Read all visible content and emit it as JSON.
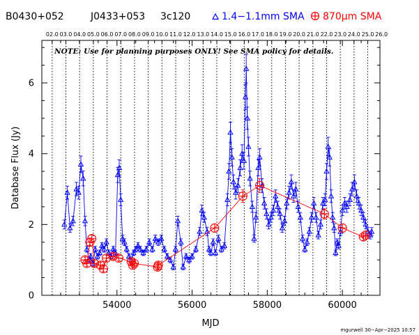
{
  "header": {
    "names": [
      "B0430+052",
      "J0433+053",
      "3c120"
    ],
    "legend_1mm": "1.4−1.1mm SMA",
    "legend_870_prefix": "870",
    "legend_870_unit": "μm SMA"
  },
  "note": "NOTE: Use for planning purposes ONLY! See SMA policy for details.",
  "credit": "mgurwell 30−Apr−2025 10:57",
  "colors": {
    "band_1mm": "#0000ff",
    "band_870": "#ff0000",
    "axes": "#000000"
  },
  "chart_data": {
    "type": "scatter",
    "xlabel": "MJD",
    "ylabel": "Database Flux (Jy)",
    "xlim": [
      52000,
      61000
    ],
    "ylim": [
      0,
      7.2
    ],
    "xticks": [
      54000,
      56000,
      58000,
      60000
    ],
    "xtick_labels": [
      "54000",
      "56000",
      "58000",
      "60000"
    ],
    "yticks": [
      0,
      2,
      4,
      6
    ],
    "ytick_labels": [
      "0",
      "2",
      "4",
      "6"
    ],
    "year_ticks": {
      "labels": [
        "02.0",
        "03.0",
        "04.0",
        "05.0",
        "06.0",
        "07.0",
        "08.0",
        "09.0",
        "10.0",
        "11.0",
        "12.0",
        "13.0",
        "14.0",
        "15.0",
        "16.0",
        "17.0",
        "18.0",
        "19.0",
        "20.0",
        "21.0",
        "22.0",
        "23.0",
        "24.0",
        "25.0",
        "26.0"
      ],
      "mjd": [
        52275,
        52640,
        53005,
        53371,
        53736,
        54101,
        54466,
        54832,
        55197,
        55562,
        55927,
        56293,
        56658,
        57023,
        57388,
        57754,
        58119,
        58484,
        58849,
        59215,
        59580,
        59945,
        60310,
        60676,
        61041
      ]
    },
    "grid": "dotted vertical lines at year boundaries",
    "series": [
      {
        "name": "1.4−1.1mm SMA",
        "color": "#0000ff",
        "marker": "triangle",
        "points": [
          [
            52600,
            2.0
          ],
          [
            52680,
            2.9
          ],
          [
            52750,
            1.9
          ],
          [
            52830,
            2.1
          ],
          [
            52920,
            3.0
          ],
          [
            52980,
            2.9
          ],
          [
            53040,
            3.7
          ],
          [
            53100,
            3.3
          ],
          [
            53150,
            2.1
          ],
          [
            53200,
            1.3
          ],
          [
            53260,
            1.0
          ],
          [
            53300,
            1.1
          ],
          [
            53360,
            0.9
          ],
          [
            53420,
            1.3
          ],
          [
            53480,
            1.1
          ],
          [
            53540,
            1.2
          ],
          [
            53600,
            1.4
          ],
          [
            53660,
            1.3
          ],
          [
            53720,
            1.5
          ],
          [
            53780,
            1.2
          ],
          [
            53840,
            1.1
          ],
          [
            53900,
            1.3
          ],
          [
            53960,
            1.2
          ],
          [
            54020,
            3.4
          ],
          [
            54060,
            3.6
          ],
          [
            54100,
            2.7
          ],
          [
            54150,
            1.6
          ],
          [
            54200,
            1.5
          ],
          [
            54260,
            1.3
          ],
          [
            54320,
            1.1
          ],
          [
            54380,
            1.0
          ],
          [
            54440,
            1.2
          ],
          [
            54500,
            1.3
          ],
          [
            54560,
            1.4
          ],
          [
            54620,
            1.3
          ],
          [
            54700,
            1.2
          ],
          [
            54780,
            1.3
          ],
          [
            54860,
            1.5
          ],
          [
            54940,
            1.3
          ],
          [
            55020,
            1.6
          ],
          [
            55100,
            1.5
          ],
          [
            55180,
            1.6
          ],
          [
            55260,
            1.3
          ],
          [
            55340,
            1.1
          ],
          [
            55420,
            1.0
          ],
          [
            55500,
            0.8
          ],
          [
            55560,
            1.3
          ],
          [
            55620,
            2.1
          ],
          [
            55700,
            1.5
          ],
          [
            55760,
            0.8
          ],
          [
            55840,
            1.1
          ],
          [
            55920,
            1.0
          ],
          [
            56000,
            1.1
          ],
          [
            56100,
            1.3
          ],
          [
            56200,
            1.8
          ],
          [
            56260,
            2.4
          ],
          [
            56320,
            2.2
          ],
          [
            56400,
            1.8
          ],
          [
            56450,
            1.3
          ],
          [
            56500,
            1.2
          ],
          [
            56560,
            1.5
          ],
          [
            56620,
            1.2
          ],
          [
            56700,
            1.6
          ],
          [
            56780,
            1.3
          ],
          [
            56860,
            1.4
          ],
          [
            56940,
            2.7
          ],
          [
            56980,
            3.5
          ],
          [
            57020,
            4.6
          ],
          [
            57060,
            3.9
          ],
          [
            57100,
            3.2
          ],
          [
            57160,
            2.9
          ],
          [
            57220,
            3.1
          ],
          [
            57280,
            3.6
          ],
          [
            57330,
            4.0
          ],
          [
            57380,
            3.8
          ],
          [
            57420,
            5.6
          ],
          [
            57440,
            6.4
          ],
          [
            57470,
            5.0
          ],
          [
            57500,
            4.2
          ],
          [
            57540,
            3.3
          ],
          [
            57600,
            2.5
          ],
          [
            57650,
            1.6
          ],
          [
            57700,
            2.2
          ],
          [
            57760,
            3.6
          ],
          [
            57800,
            3.9
          ],
          [
            57860,
            3.1
          ],
          [
            57920,
            2.6
          ],
          [
            57980,
            2.3
          ],
          [
            58040,
            2.0
          ],
          [
            58100,
            2.2
          ],
          [
            58160,
            2.4
          ],
          [
            58220,
            2.8
          ],
          [
            58280,
            2.5
          ],
          [
            58340,
            2.3
          ],
          [
            58400,
            1.9
          ],
          [
            58460,
            2.1
          ],
          [
            58520,
            2.6
          ],
          [
            58580,
            2.9
          ],
          [
            58640,
            3.2
          ],
          [
            58700,
            2.8
          ],
          [
            58760,
            3.0
          ],
          [
            58820,
            2.5
          ],
          [
            58880,
            2.2
          ],
          [
            58940,
            1.6
          ],
          [
            59000,
            1.3
          ],
          [
            59060,
            1.5
          ],
          [
            59120,
            1.8
          ],
          [
            59180,
            2.2
          ],
          [
            59240,
            2.6
          ],
          [
            59300,
            2.2
          ],
          [
            59360,
            1.7
          ],
          [
            59420,
            2.0
          ],
          [
            59480,
            2.6
          ],
          [
            59540,
            2.7
          ],
          [
            59580,
            3.5
          ],
          [
            59620,
            4.2
          ],
          [
            59660,
            3.9
          ],
          [
            59700,
            2.8
          ],
          [
            59740,
            2.2
          ],
          [
            59780,
            1.9
          ],
          [
            59820,
            1.2
          ],
          [
            59860,
            1.5
          ],
          [
            59900,
            1.4
          ],
          [
            59950,
            1.8
          ],
          [
            60000,
            2.4
          ],
          [
            60060,
            2.6
          ],
          [
            60120,
            2.5
          ],
          [
            60200,
            2.7
          ],
          [
            60260,
            3.0
          ],
          [
            60320,
            3.2
          ],
          [
            60380,
            2.8
          ],
          [
            60440,
            2.6
          ],
          [
            60500,
            2.4
          ],
          [
            60560,
            2.2
          ],
          [
            60620,
            2.0
          ],
          [
            60680,
            1.8
          ],
          [
            60740,
            1.7
          ],
          [
            60780,
            1.8
          ]
        ]
      },
      {
        "name": "870μm SMA",
        "color": "#ff0000",
        "marker": "circle-plus",
        "points": [
          [
            53150,
            1.0
          ],
          [
            53200,
            0.9
          ],
          [
            53280,
            1.5
          ],
          [
            53330,
            1.6
          ],
          [
            53400,
            0.9
          ],
          [
            53560,
            0.85
          ],
          [
            53640,
            0.75
          ],
          [
            53720,
            1.05
          ],
          [
            53900,
            1.1
          ],
          [
            54050,
            1.05
          ],
          [
            54380,
            0.95
          ],
          [
            54420,
            0.85
          ],
          [
            54460,
            0.9
          ],
          [
            55080,
            0.8
          ],
          [
            55100,
            0.85
          ],
          [
            56600,
            1.9
          ],
          [
            57350,
            2.8
          ],
          [
            57800,
            3.1
          ],
          [
            59520,
            2.3
          ],
          [
            60000,
            1.9
          ],
          [
            60560,
            1.65
          ],
          [
            60620,
            1.7
          ]
        ]
      }
    ]
  }
}
